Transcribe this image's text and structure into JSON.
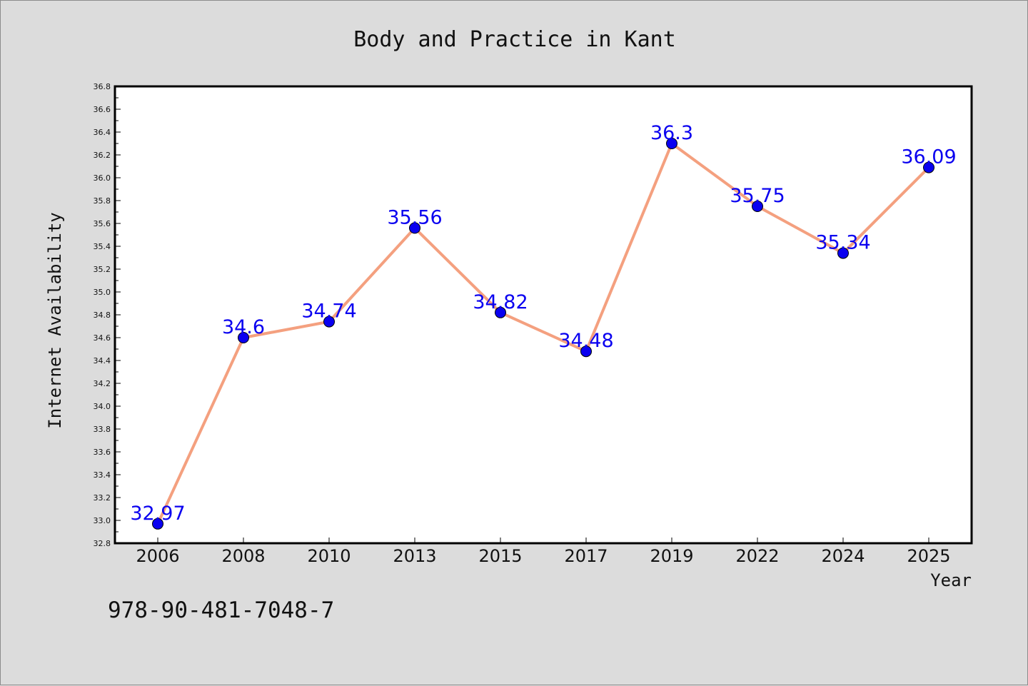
{
  "chart_data": {
    "type": "line",
    "title": "Body and Practice in Kant",
    "xlabel": "Year",
    "ylabel": "Internet Availability",
    "categories": [
      "2006",
      "2008",
      "2010",
      "2013",
      "2015",
      "2017",
      "2019",
      "2022",
      "2024",
      "2025"
    ],
    "values": [
      32.97,
      34.6,
      34.74,
      35.56,
      34.82,
      34.48,
      36.3,
      35.75,
      35.34,
      36.09
    ],
    "value_labels": [
      "32.97",
      "34.6",
      "34.74",
      "35.56",
      "34.82",
      "34.48",
      "36.3",
      "35.75",
      "35.34",
      "36.09"
    ],
    "ylim": [
      32.8,
      36.8
    ],
    "yticks": [
      "32.8",
      "33.0",
      "33.2",
      "33.4",
      "33.6",
      "33.8",
      "34.0",
      "34.2",
      "34.4",
      "34.6",
      "34.8",
      "35.0",
      "35.2",
      "35.4",
      "35.6",
      "35.8",
      "36.0",
      "36.2",
      "36.4",
      "36.6",
      "36.8"
    ],
    "grid": false,
    "line_color": "#f4a07f",
    "marker_color": "#0a00f0",
    "label_color": "#0a00f0"
  },
  "footer": {
    "isbn": "978-90-481-7048-7"
  }
}
